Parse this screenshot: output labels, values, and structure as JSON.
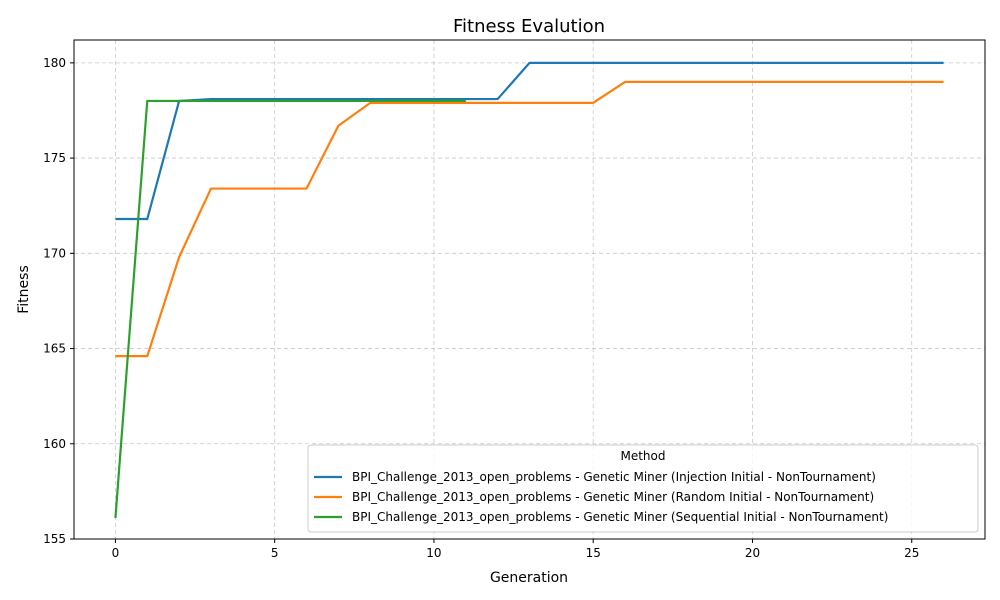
{
  "chart_data": {
    "type": "line",
    "title": "Fitness Evalution",
    "xlabel": "Generation",
    "ylabel": "Fitness",
    "xlim": [
      -1.3,
      27.3
    ],
    "ylim": [
      155.0,
      181.2
    ],
    "xticks": [
      0,
      5,
      10,
      15,
      20,
      25
    ],
    "yticks": [
      155,
      160,
      165,
      170,
      175,
      180
    ],
    "grid": true,
    "legend": {
      "title": "Method",
      "placement": "bottom-right"
    },
    "series": [
      {
        "name": "BPI_Challenge_2013_open_problems - Genetic Miner (Injection Initial - NonTournament)",
        "color": "#1f77b4",
        "x": [
          0,
          1,
          2,
          3,
          4,
          5,
          6,
          7,
          8,
          9,
          10,
          11,
          12,
          13,
          14,
          15,
          16,
          17,
          18,
          19,
          20,
          21,
          22,
          23,
          24,
          25,
          26
        ],
        "y": [
          171.8,
          171.8,
          178.0,
          178.1,
          178.1,
          178.1,
          178.1,
          178.1,
          178.1,
          178.1,
          178.1,
          178.1,
          178.1,
          180.0,
          180.0,
          180.0,
          180.0,
          180.0,
          180.0,
          180.0,
          180.0,
          180.0,
          180.0,
          180.0,
          180.0,
          180.0,
          180.0
        ]
      },
      {
        "name": "BPI_Challenge_2013_open_problems - Genetic Miner (Random Initial - NonTournament)",
        "color": "#ff7f0e",
        "x": [
          0,
          1,
          2,
          3,
          4,
          5,
          6,
          7,
          8,
          9,
          10,
          11,
          12,
          13,
          14,
          15,
          16,
          17,
          18,
          19,
          20,
          21,
          22,
          23,
          24,
          25,
          26
        ],
        "y": [
          164.6,
          164.6,
          169.8,
          173.4,
          173.4,
          173.4,
          173.4,
          176.7,
          177.9,
          177.9,
          177.9,
          177.9,
          177.9,
          177.9,
          177.9,
          177.9,
          179.0,
          179.0,
          179.0,
          179.0,
          179.0,
          179.0,
          179.0,
          179.0,
          179.0,
          179.0,
          179.0
        ]
      },
      {
        "name": "BPI_Challenge_2013_open_problems - Genetic Miner (Sequential Initial - NonTournament)",
        "color": "#2ca02c",
        "x": [
          0,
          1,
          2,
          3,
          4,
          5,
          6,
          7,
          8,
          9,
          10,
          11
        ],
        "y": [
          156.1,
          178.0,
          178.0,
          178.0,
          178.0,
          178.0,
          178.0,
          178.0,
          178.0,
          178.0,
          178.0,
          178.0
        ]
      }
    ]
  }
}
